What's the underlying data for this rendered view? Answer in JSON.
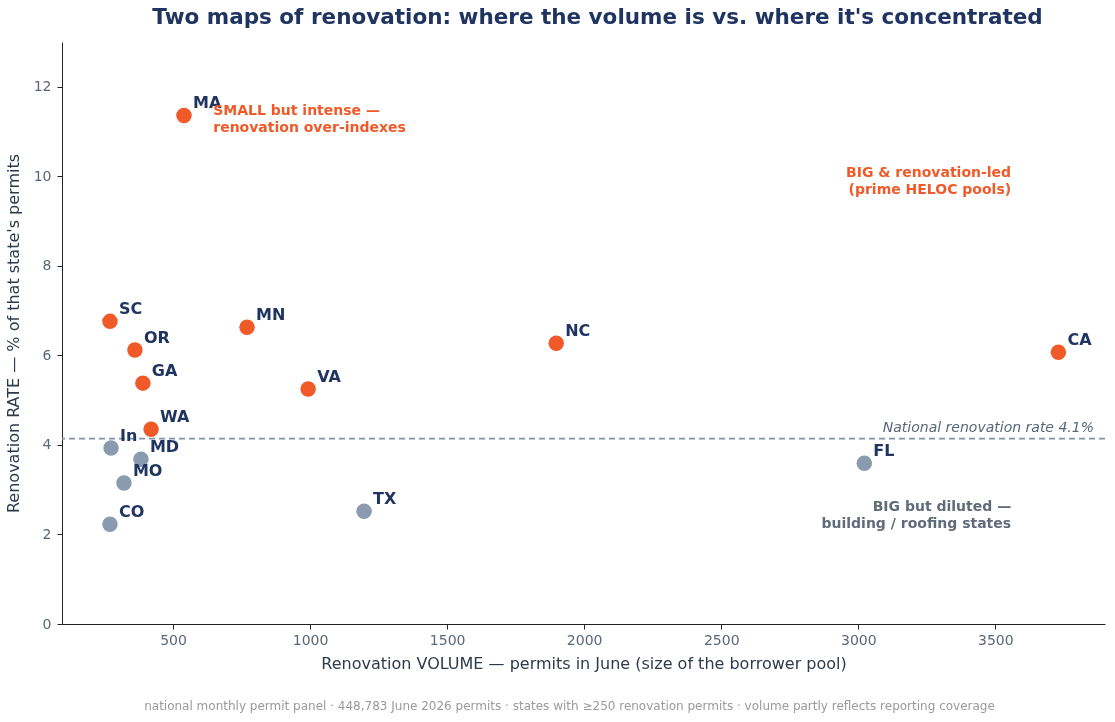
{
  "chart_data": {
    "type": "scatter",
    "title": "Two maps of renovation: where the volume is vs. where it's concentrated",
    "xlabel": "Renovation VOLUME — permits in June (size of the borrower pool)",
    "ylabel": "Renovation RATE — % of that state's permits",
    "xlim": [
      95,
      3900
    ],
    "xticks": [
      500,
      1000,
      1500,
      2000,
      2500,
      3000,
      3500
    ],
    "ylim": [
      0,
      13
    ],
    "yticks": [
      0,
      2,
      4,
      6,
      8,
      10,
      12
    ],
    "grid": false,
    "marker": "circle",
    "series": [
      {
        "color": "#f05a28",
        "x": [
          540,
          270,
          361,
          390,
          420,
          770,
          993,
          1898,
          3730
        ],
        "values": [
          11.36,
          6.76,
          6.12,
          5.38,
          4.35,
          6.63,
          5.25,
          6.27,
          6.07
        ]
      },
      {
        "color": "#8a9bb0",
        "x": [
          274,
          383,
          321,
          270,
          1197,
          3022
        ],
        "values": [
          3.93,
          3.68,
          3.15,
          2.23,
          2.52,
          3.59
        ]
      }
    ],
    "ref_lines": [
      {
        "axis": "y",
        "value": 4.14,
        "label": "National renovation rate 4.1%",
        "color": "#8593a8",
        "line_style": "dashed"
      }
    ],
    "annotations": [
      {
        "text": "MA",
        "x": 540,
        "y": 11.36
      },
      {
        "text": "SC",
        "x": 270,
        "y": 6.76
      },
      {
        "text": "OR",
        "x": 361,
        "y": 6.12
      },
      {
        "text": "GA",
        "x": 390,
        "y": 5.38
      },
      {
        "text": "WA",
        "x": 420,
        "y": 4.35
      },
      {
        "text": "MN",
        "x": 770,
        "y": 6.63
      },
      {
        "text": "VA",
        "x": 993,
        "y": 5.25
      },
      {
        "text": "NC",
        "x": 1898,
        "y": 6.27
      },
      {
        "text": "CA",
        "x": 3730,
        "y": 6.07
      },
      {
        "text": "In",
        "x": 274,
        "y": 3.93
      },
      {
        "text": "MD",
        "x": 383,
        "y": 3.68
      },
      {
        "text": "MO",
        "x": 321,
        "y": 3.15
      },
      {
        "text": "CO",
        "x": 270,
        "y": 2.23
      },
      {
        "text": "TX",
        "x": 1197,
        "y": 2.52
      },
      {
        "text": "FL",
        "x": 3022,
        "y": 3.59
      },
      "SMALL but intense —\nrenovation over-indexes",
      "BIG & renovation-led\n(prime HELOC pools)",
      "BIG but diluted —\nbuilding / roofing states",
      "national monthly permit panel · 448,783 June 2026 permits · states with ≥250 renovation permits · volume partly reflects reporting coverage"
    ]
  }
}
